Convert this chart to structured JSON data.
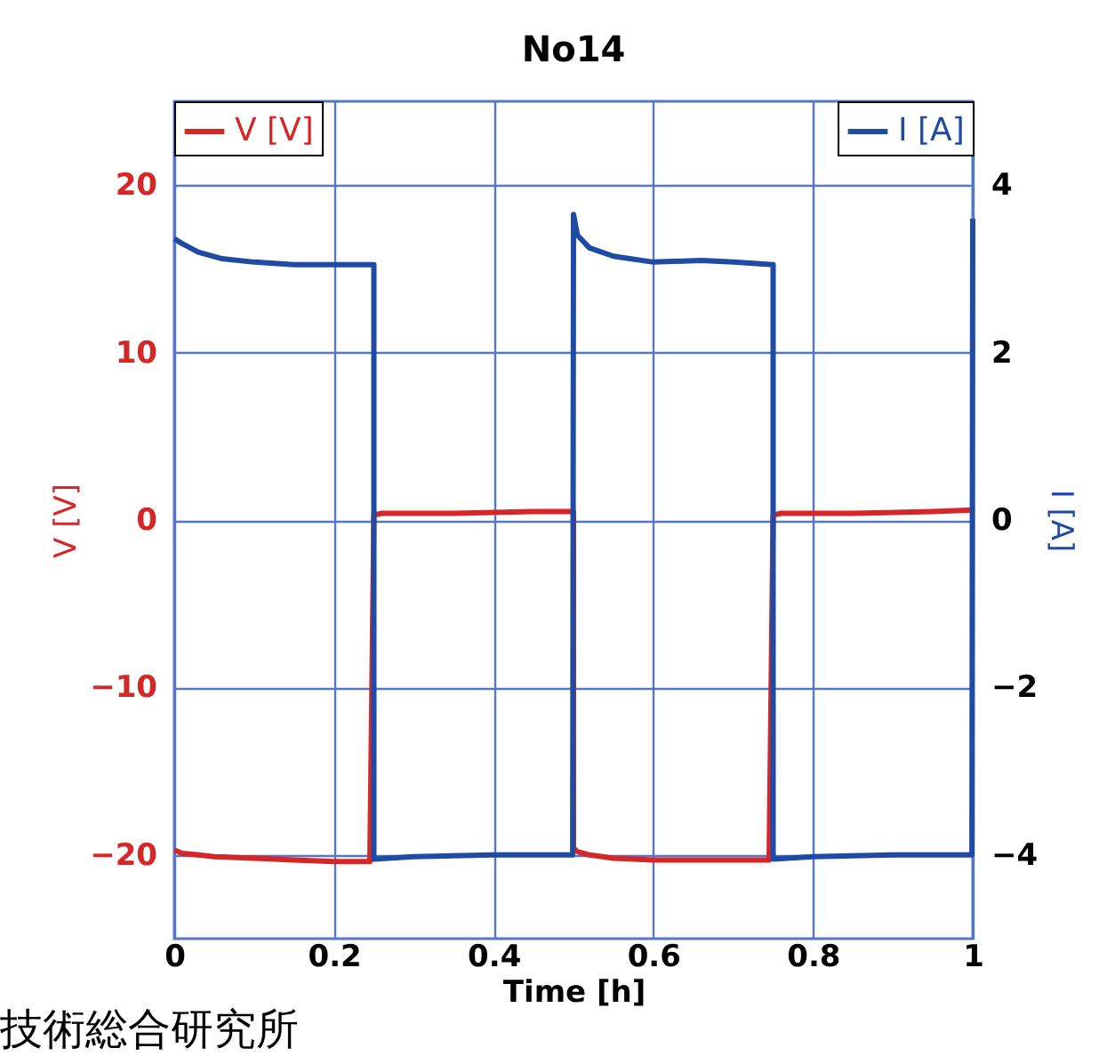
{
  "chart_data": {
    "type": "line",
    "title": "No14",
    "xlabel": "Time [h]",
    "ylabel": "V [V]",
    "y2label": "I [A]",
    "xlim": [
      0,
      1
    ],
    "xticks": [
      0,
      0.2,
      0.4,
      0.6,
      0.8,
      1
    ],
    "ylim": [
      -25,
      25
    ],
    "yticks": [
      -20,
      -10,
      0,
      10,
      20
    ],
    "y2lim": [
      -5,
      5
    ],
    "y2ticks": [
      -4,
      -2,
      0,
      2,
      4
    ],
    "grid": true,
    "legend": "top",
    "line_style": "solid",
    "marker": "none",
    "annotations": [
      "技術総合研究所"
    ],
    "series": [
      {
        "name": "V [V]",
        "color": "#d62728",
        "axis": "y",
        "x": [
          0,
          0.01,
          0.03,
          0.05,
          0.1,
          0.15,
          0.2,
          0.245,
          0.25,
          0.26,
          0.35,
          0.45,
          0.5,
          0.5,
          0.505,
          0.52,
          0.55,
          0.6,
          0.65,
          0.7,
          0.745,
          0.75,
          0.76,
          0.85,
          0.95,
          1.0
        ],
        "values": [
          -19.7,
          -19.9,
          -20.0,
          -20.1,
          -20.2,
          -20.3,
          -20.4,
          -20.4,
          0.3,
          0.4,
          0.4,
          0.5,
          0.5,
          -19.6,
          -19.8,
          -20.0,
          -20.2,
          -20.3,
          -20.3,
          -20.3,
          -20.3,
          0.3,
          0.4,
          0.4,
          0.5,
          0.6
        ]
      },
      {
        "name": "I [A]",
        "color": "#1f4ba5",
        "axis": "y2",
        "x": [
          0,
          0.01,
          0.03,
          0.06,
          0.1,
          0.15,
          0.2,
          0.25,
          0.25,
          0.3,
          0.4,
          0.499,
          0.5,
          0.505,
          0.52,
          0.55,
          0.6,
          0.66,
          0.7,
          0.75,
          0.75,
          0.8,
          0.9,
          0.999,
          1.0
        ],
        "values": [
          3.36,
          3.3,
          3.2,
          3.12,
          3.08,
          3.05,
          3.05,
          3.05,
          -4.05,
          -4.02,
          -4.0,
          -4.0,
          3.65,
          3.4,
          3.25,
          3.15,
          3.08,
          3.1,
          3.08,
          3.05,
          -4.05,
          -4.02,
          -4.0,
          -4.0,
          3.6
        ]
      }
    ]
  }
}
